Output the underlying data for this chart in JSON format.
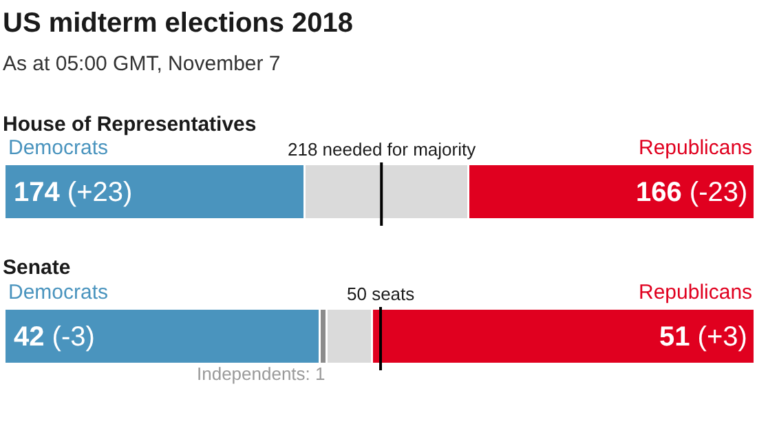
{
  "chart_data": [
    {
      "type": "other",
      "title": "US midterm elections 2018",
      "subtitle": "As at 05:00 GMT, November 7"
    },
    {
      "type": "bar",
      "title": "House of Representatives",
      "orientation": "horizontal",
      "stacked": true,
      "categories": [
        null
      ],
      "xlim": [
        0,
        435
      ],
      "tick_labels": false,
      "legend": false,
      "series": [
        {
          "name": "Democrats",
          "color": "#4a94be",
          "values": [
            174
          ],
          "value_labels": [
            "174 (+23)"
          ]
        },
        {
          "color": "#dadada",
          "values": [
            95
          ],
          "value_labels": [
            null
          ]
        },
        {
          "name": "Republicans",
          "color": "#e0001f",
          "values": [
            166
          ],
          "value_labels": [
            "166 (-23)"
          ]
        }
      ],
      "ref_lines": [
        {
          "axis": "x",
          "value": 218,
          "label": "218 needed for majority",
          "color": "#000000"
        }
      ]
    },
    {
      "type": "bar",
      "title": "Senate",
      "orientation": "horizontal",
      "stacked": true,
      "categories": [
        null
      ],
      "xlim": [
        0,
        100
      ],
      "tick_labels": false,
      "legend": false,
      "series": [
        {
          "name": "Democrats",
          "color": "#4a94be",
          "values": [
            42
          ],
          "value_labels": [
            "42 (-3)"
          ]
        },
        {
          "color": "#8c8c8c",
          "values": [
            1
          ],
          "value_labels": [
            "Independents: 1"
          ]
        },
        {
          "color": "#dadada",
          "values": [
            6
          ],
          "value_labels": [
            null
          ]
        },
        {
          "name": "Republicans",
          "color": "#e0001f",
          "values": [
            51
          ],
          "value_labels": [
            "51 (+3)"
          ]
        }
      ],
      "ref_lines": [
        {
          "axis": "x",
          "value": 50,
          "label": "50 seats",
          "color": "#000000"
        }
      ]
    }
  ]
}
